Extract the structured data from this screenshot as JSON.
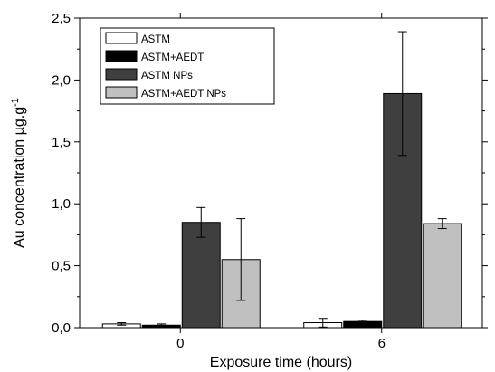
{
  "chart_data": {
    "type": "bar",
    "categories": [
      "0",
      "6"
    ],
    "xlabel": "Exposure time (hours)",
    "ylabel": "Au concentration µg.g",
    "ylabel_superscript": "-1",
    "ylim": [
      0,
      2.5
    ],
    "yticks": [
      "0,0",
      "0,5",
      "1,0",
      "1,5",
      "2,0",
      "2,5"
    ],
    "legend_position": "top-left",
    "grid": false,
    "series": [
      {
        "name": "ASTM",
        "color": "#ffffff",
        "values": [
          0.03,
          0.04
        ],
        "errors": [
          0.01,
          0.035
        ]
      },
      {
        "name": "ASTM+AEDT",
        "color": "#000000",
        "values": [
          0.02,
          0.05
        ],
        "errors": [
          0.01,
          0.01
        ]
      },
      {
        "name": "ASTM NPs",
        "color": "#3f3f3f",
        "values": [
          0.85,
          1.89
        ],
        "errors": [
          0.12,
          0.5
        ]
      },
      {
        "name": "ASTM+AEDT NPs",
        "color": "#c0c0c0",
        "values": [
          0.55,
          0.84
        ],
        "errors": [
          0.33,
          0.04
        ]
      }
    ]
  }
}
